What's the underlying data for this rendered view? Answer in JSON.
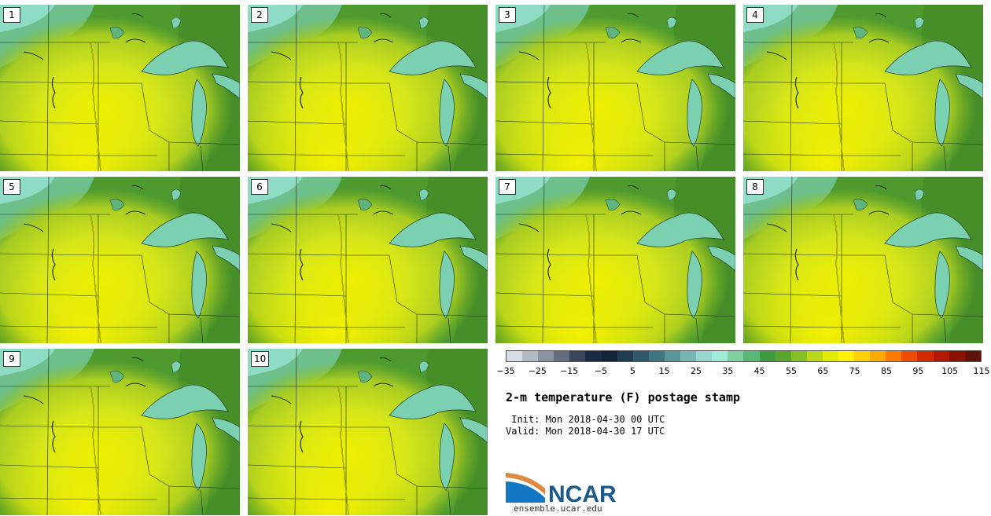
{
  "panels": [
    "1",
    "2",
    "3",
    "4",
    "5",
    "6",
    "7",
    "8",
    "9",
    "10"
  ],
  "colorbar": {
    "colors": [
      "#d8dde3",
      "#b4bac2",
      "#8c93a0",
      "#646d7e",
      "#3a4458",
      "#1a2a44",
      "#142338",
      "#203c50",
      "#305a6c",
      "#3f7580",
      "#5a9698",
      "#78b4b0",
      "#96d6cc",
      "#a0ead8",
      "#7fcfa0",
      "#5cb878",
      "#3f9a40",
      "#58a530",
      "#84c028",
      "#b8d818",
      "#e0ec00",
      "#fff200",
      "#ffd000",
      "#ffaa00",
      "#ff7a00",
      "#f04c00",
      "#d42a00",
      "#b21800",
      "#8a1200",
      "#601408"
    ],
    "tick_labels": [
      "−35",
      "−25",
      "−15",
      "−5",
      "5",
      "15",
      "25",
      "35",
      "45",
      "55",
      "65",
      "75",
      "85",
      "95",
      "105",
      "115"
    ]
  },
  "title": "2-m temperature (F) postage stamp",
  "init_line": " Init: Mon 2018-04-30 00 UTC",
  "valid_line": "Valid: Mon 2018-04-30 17 UTC",
  "logo_text": "NCAR",
  "url": "ensemble.ucar.edu",
  "colors": {
    "lake": "#7ad0b0",
    "cool_green": "#3f9a40",
    "warm_yellow": "#e0ec00"
  }
}
